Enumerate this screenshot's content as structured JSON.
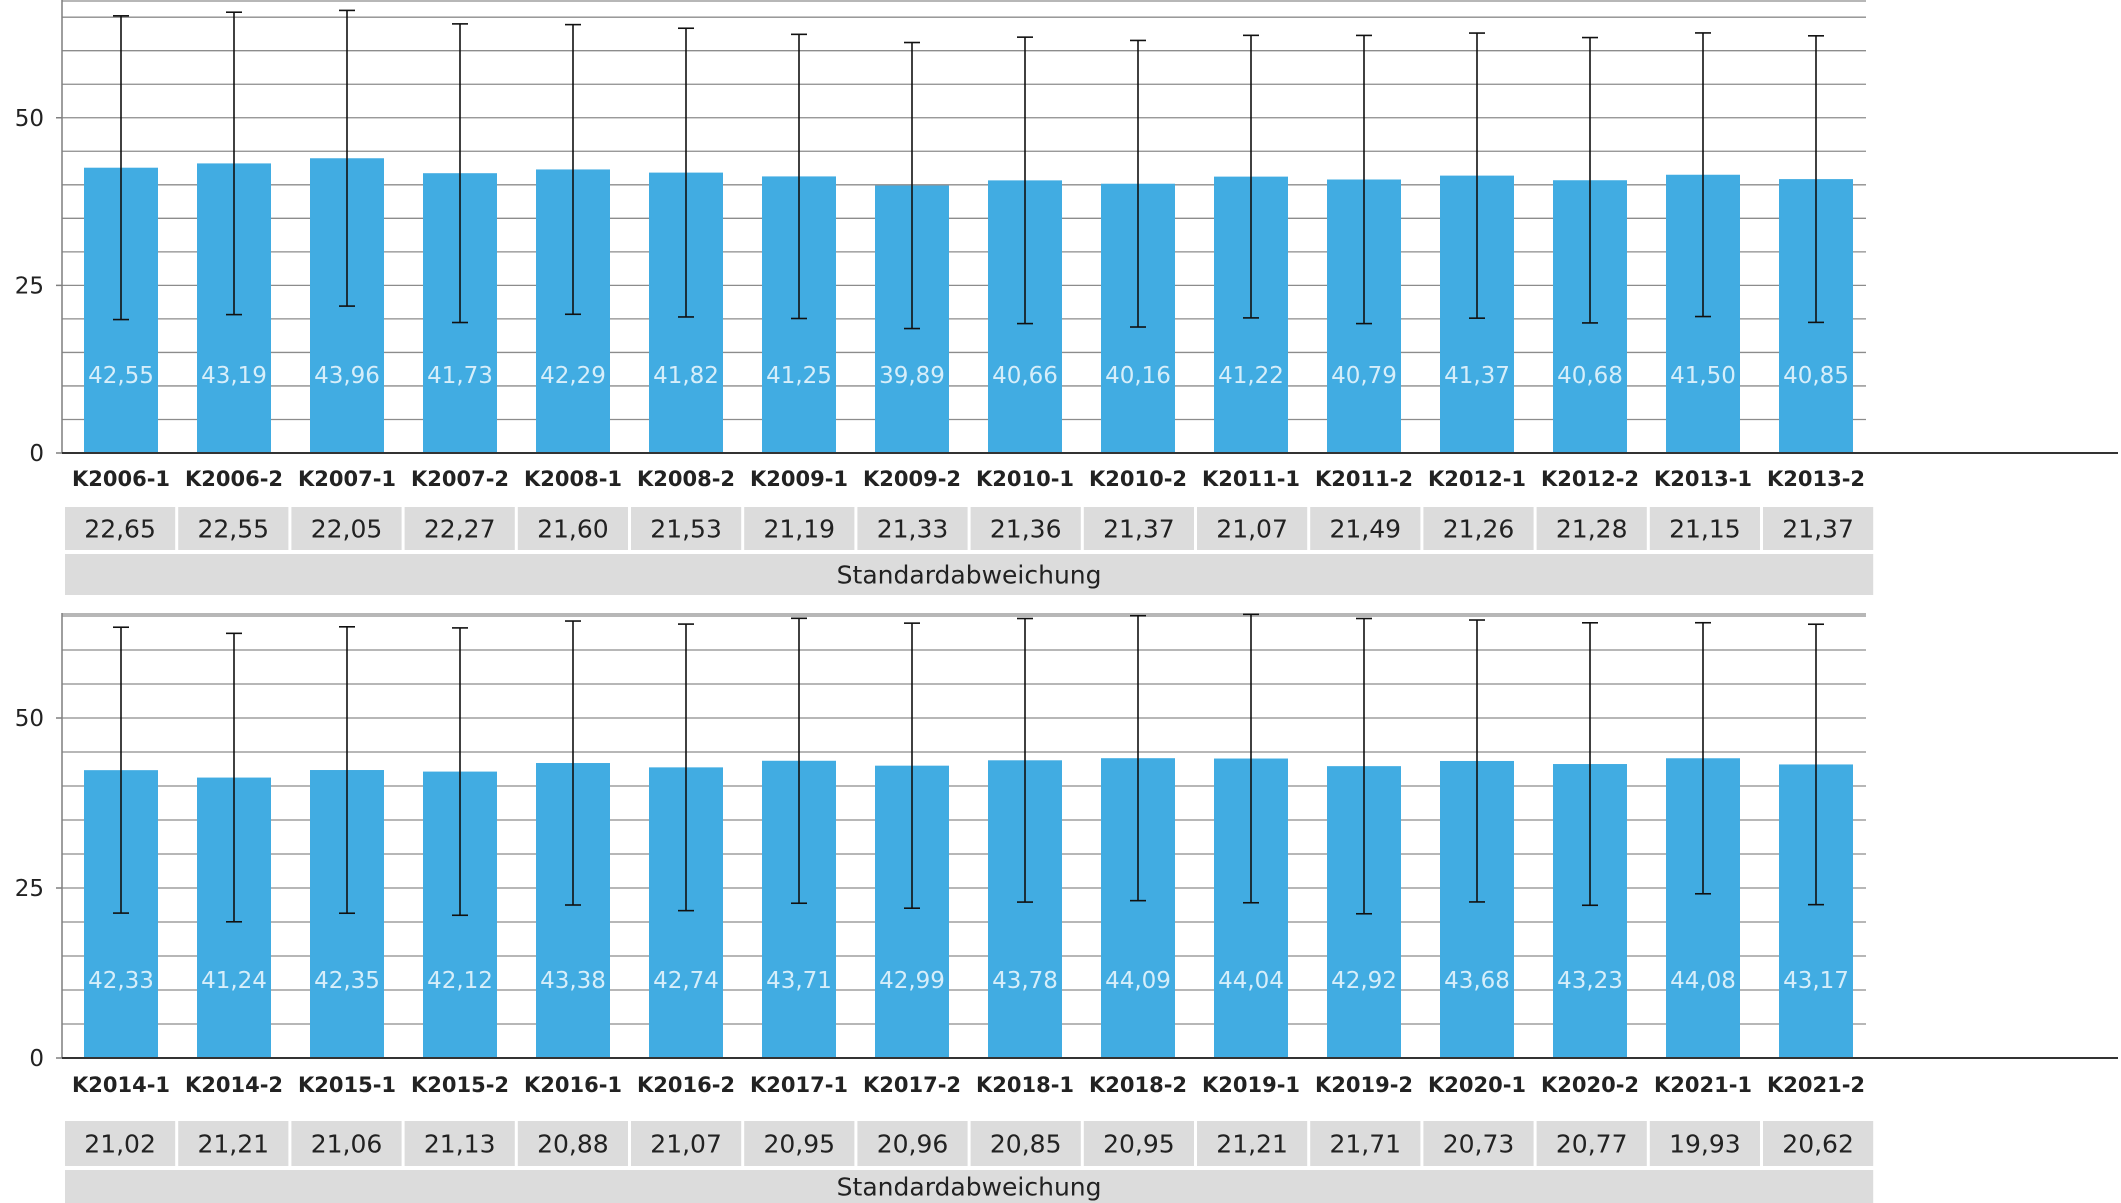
{
  "chart_data": [
    {
      "type": "bar",
      "categories": [
        "K2006-1",
        "K2006-2",
        "K2007-1",
        "K2007-2",
        "K2008-1",
        "K2008-2",
        "K2009-1",
        "K2009-2",
        "K2010-1",
        "K2010-2",
        "K2011-1",
        "K2011-2",
        "K2012-1",
        "K2012-2",
        "K2013-1",
        "K2013-2"
      ],
      "values": [
        42.55,
        43.19,
        43.96,
        41.73,
        42.29,
        41.82,
        41.25,
        39.89,
        40.66,
        40.16,
        41.22,
        40.79,
        41.37,
        40.68,
        41.5,
        40.85
      ],
      "value_labels": [
        "42,55",
        "43,19",
        "43,96",
        "41,73",
        "42,29",
        "41,82",
        "41,25",
        "39,89",
        "40,66",
        "40,16",
        "41,22",
        "40,79",
        "41,37",
        "40,68",
        "41,50",
        "40,85"
      ],
      "std_dev": [
        22.65,
        22.55,
        22.05,
        22.27,
        21.6,
        21.53,
        21.19,
        21.33,
        21.36,
        21.37,
        21.07,
        21.49,
        21.26,
        21.28,
        21.15,
        21.37
      ],
      "std_dev_labels": [
        "22,65",
        "22,55",
        "22,05",
        "22,27",
        "21,60",
        "21,53",
        "21,19",
        "21,33",
        "21,36",
        "21,37",
        "21,07",
        "21,49",
        "21,26",
        "21,28",
        "21,15",
        "21,37"
      ],
      "table_caption": "Standardabweichung",
      "yticks": [
        0,
        25,
        50
      ],
      "ylim": [
        0,
        66
      ],
      "grid": true,
      "error_bars": true,
      "bar_color": "#41ACE2",
      "label_color": "#D6EEFA"
    },
    {
      "type": "bar",
      "categories": [
        "K2014-1",
        "K2014-2",
        "K2015-1",
        "K2015-2",
        "K2016-1",
        "K2016-2",
        "K2017-1",
        "K2017-2",
        "K2018-1",
        "K2018-2",
        "K2019-1",
        "K2019-2",
        "K2020-1",
        "K2020-2",
        "K2021-1",
        "K2021-2"
      ],
      "values": [
        42.33,
        41.24,
        42.35,
        42.12,
        43.38,
        42.74,
        43.71,
        42.99,
        43.78,
        44.09,
        44.04,
        42.92,
        43.68,
        43.23,
        44.08,
        43.17
      ],
      "value_labels": [
        "42,33",
        "41,24",
        "42,35",
        "42,12",
        "43,38",
        "42,74",
        "43,71",
        "42,99",
        "43,78",
        "44,09",
        "44,04",
        "42,92",
        "43,68",
        "43,23",
        "44,08",
        "43,17"
      ],
      "std_dev": [
        21.02,
        21.21,
        21.06,
        21.13,
        20.88,
        21.07,
        20.95,
        20.96,
        20.85,
        20.95,
        21.21,
        21.71,
        20.73,
        20.77,
        19.93,
        20.62
      ],
      "std_dev_labels": [
        "21,02",
        "21,21",
        "21,06",
        "21,13",
        "20,88",
        "21,07",
        "20,95",
        "20,96",
        "20,85",
        "20,95",
        "21,21",
        "21,71",
        "20,73",
        "20,77",
        "19,93",
        "20,62"
      ],
      "table_caption": "Standardabweichung",
      "yticks": [
        0,
        25,
        50
      ],
      "ylim": [
        0,
        66
      ],
      "grid": true,
      "error_bars": true,
      "bar_color": "#41ACE2",
      "label_color": "#D6EEFA"
    }
  ]
}
